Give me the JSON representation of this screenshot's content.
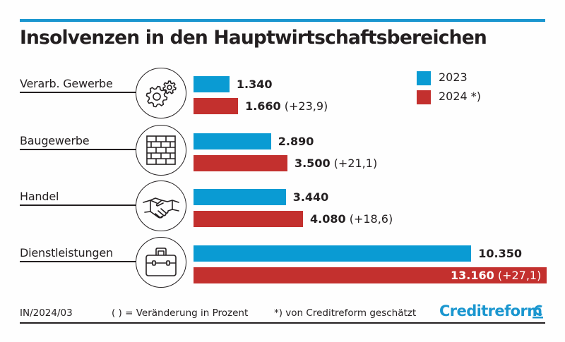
{
  "colors": {
    "series_2023": "#0a9bd3",
    "series_2024": "#c3302e",
    "accent_line": "#1a96cf",
    "text": "#231f20",
    "logo": "#1a96cf"
  },
  "chart_data": {
    "type": "bar",
    "orientation": "horizontal",
    "title": "Insolvenzen in den Hauptwirtschaftsbereichen",
    "categories": [
      "Verarb. Gewerbe",
      "Baugewerbe",
      "Handel",
      "Dienstleistungen"
    ],
    "category_icons": [
      "gears-icon",
      "brick-wall-icon",
      "handshake-icon",
      "briefcase-icon"
    ],
    "series": [
      {
        "name": "2023",
        "values": [
          1340,
          2890,
          3440,
          10350
        ],
        "labels": [
          "1.340",
          "2.890",
          "3.440",
          "10.350"
        ]
      },
      {
        "name": "2024*)",
        "values": [
          1660,
          3500,
          4080,
          13160
        ],
        "labels": [
          "1.660",
          "3.500",
          "4.080",
          "13.160"
        ],
        "changes": [
          "(+23,9)",
          "(+21,1)",
          "(+18,6)",
          "(+27,1)"
        ]
      }
    ],
    "legend": [
      "2023",
      "2024 *)"
    ],
    "legend_position": "top-right",
    "xlim": [
      0,
      13160
    ],
    "grid": false
  },
  "footer": {
    "code": "IN/2024/03",
    "note_change": "( ) = Veränderung in Prozent",
    "note_estimate": "*) von Creditreform geschätzt",
    "logo_text": "Creditreform"
  }
}
